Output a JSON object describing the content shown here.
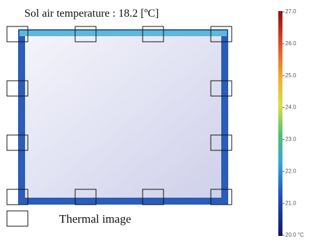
{
  "title": "Sol air  temperature : 18.2 [ºC]",
  "legend": {
    "label": "Thermal image"
  },
  "colorbar": {
    "range": [
      20,
      27
    ],
    "ticks": [
      {
        "value": 20,
        "label": "20.0 °C"
      },
      {
        "value": 21,
        "label": "21.0"
      },
      {
        "value": 22,
        "label": "22.0"
      },
      {
        "value": 23,
        "label": "23.0"
      },
      {
        "value": 24,
        "label": "24.0"
      },
      {
        "value": 25,
        "label": "25.0"
      },
      {
        "value": 26,
        "label": "26.0"
      },
      {
        "value": 27,
        "label": "27.0"
      }
    ]
  }
}
